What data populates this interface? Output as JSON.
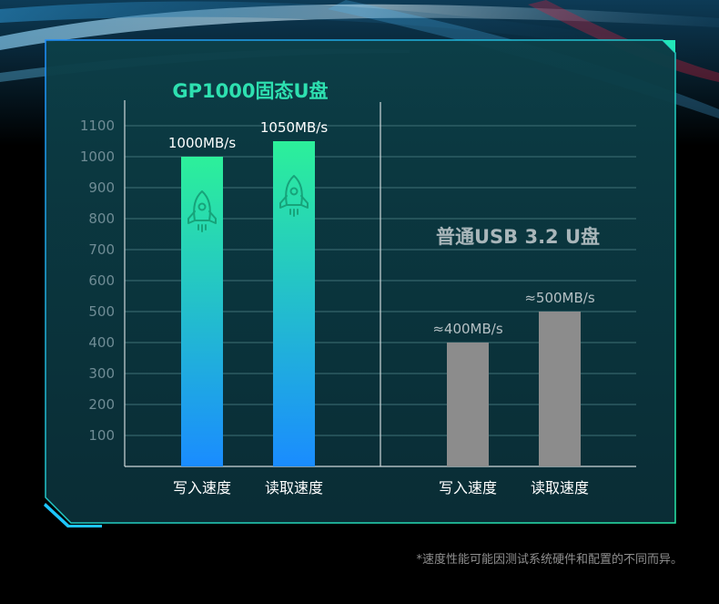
{
  "footnote": "*速度性能可能因测试系统硬件和配置的不同而异。",
  "colors": {
    "fast_gradient_top": "#2cf09a",
    "fast_gradient_bottom": "#1a8cff",
    "slow_bar": "#8c8c8c",
    "frame": "#22d6b8",
    "grid": "#3f7076",
    "panel": "#0b3d44"
  },
  "icons": [
    "rocket-icon",
    "rocket-icon"
  ],
  "chart_data": {
    "type": "bar",
    "ylim": [
      0,
      1100
    ],
    "yticks": [
      "100",
      "200",
      "300",
      "400",
      "500",
      "600",
      "700",
      "800",
      "900",
      "1000",
      "1100"
    ],
    "grid": true,
    "groups": [
      {
        "title": "GP1000固态U盘",
        "categories": [
          "写入速度",
          "读取速度"
        ],
        "values": [
          1000,
          1050
        ],
        "value_labels": [
          "1000MB/s",
          "1050MB/s"
        ],
        "color": "gradient green-blue"
      },
      {
        "title": "普通USB 3.2 U盘",
        "categories": [
          "写入速度",
          "读取速度"
        ],
        "values": [
          400,
          500
        ],
        "value_labels": [
          "≈400MB/s",
          "≈500MB/s"
        ],
        "color": "#8c8c8c"
      }
    ]
  }
}
